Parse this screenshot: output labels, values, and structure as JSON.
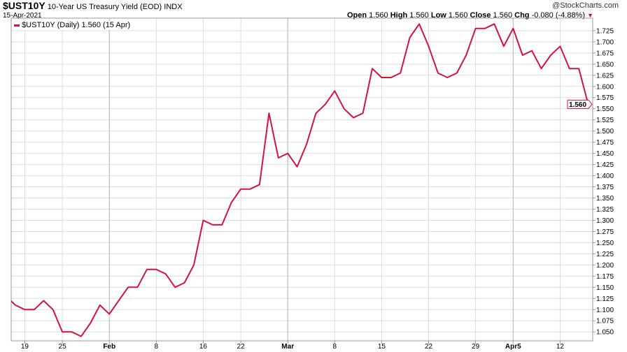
{
  "header": {
    "symbol": "$UST10Y",
    "name": "10-Year US Treasury Yield (EOD)",
    "exchange": "INDX",
    "date": "15-Apr-2021",
    "watermark": "@StockCharts.com",
    "open_label": "Open",
    "open": "1.560",
    "high_label": "High",
    "high": "1.560",
    "low_label": "Low",
    "low": "1.560",
    "close_label": "Close",
    "close": "1.560",
    "chg_label": "Chg",
    "chg": "-0.080 (-4.88%)",
    "chg_icon": "triangle-down-icon"
  },
  "legend": {
    "text": "$UST10Y (Daily) 1.560 (15 Apr)"
  },
  "colors": {
    "line": "#d6123f",
    "grid": "#dddddd",
    "major_grid": "#b0b0b0"
  },
  "chart_data": {
    "type": "line",
    "title": "$UST10Y 10-Year US Treasury Yield (EOD) INDX",
    "ylim": [
      1.03,
      1.753
    ],
    "yaxis_side": "right",
    "grid": true,
    "legend_placement": "top-left",
    "last_value_label": "1.560",
    "yticks": [
      "1.050",
      "1.075",
      "1.100",
      "1.125",
      "1.150",
      "1.175",
      "1.200",
      "1.225",
      "1.250",
      "1.275",
      "1.300",
      "1.325",
      "1.350",
      "1.375",
      "1.400",
      "1.425",
      "1.450",
      "1.475",
      "1.500",
      "1.525",
      "1.550",
      "1.575",
      "1.600",
      "1.625",
      "1.650",
      "1.675",
      "1.700",
      "1.725"
    ],
    "xticks": [
      {
        "date": "2021-01-19",
        "label": "19",
        "major": false
      },
      {
        "date": "2021-01-25",
        "label": "25",
        "major": false
      },
      {
        "date": "2021-02-01",
        "label": "Feb",
        "major": true
      },
      {
        "date": "2021-02-08",
        "label": "8",
        "major": false
      },
      {
        "date": "2021-02-16",
        "label": "16",
        "major": false
      },
      {
        "date": "2021-02-22",
        "label": "22",
        "major": false
      },
      {
        "date": "2021-03-01",
        "label": "Mar",
        "major": true
      },
      {
        "date": "2021-03-08",
        "label": "8",
        "major": false
      },
      {
        "date": "2021-03-15",
        "label": "15",
        "major": false
      },
      {
        "date": "2021-03-22",
        "label": "22",
        "major": false
      },
      {
        "date": "2021-03-29",
        "label": "29",
        "major": false
      },
      {
        "date": "2021-04-05",
        "label": "Apr5",
        "major": true
      },
      {
        "date": "2021-04-12",
        "label": "12",
        "major": false
      }
    ],
    "series": [
      {
        "x": [
          "2021-01-14",
          "2021-01-15",
          "2021-01-19",
          "2021-01-20",
          "2021-01-21",
          "2021-01-22",
          "2021-01-25",
          "2021-01-26",
          "2021-01-27",
          "2021-01-28",
          "2021-01-29",
          "2021-02-01",
          "2021-02-02",
          "2021-02-03",
          "2021-02-04",
          "2021-02-05",
          "2021-02-08",
          "2021-02-09",
          "2021-02-10",
          "2021-02-11",
          "2021-02-12",
          "2021-02-16",
          "2021-02-17",
          "2021-02-18",
          "2021-02-19",
          "2021-02-22",
          "2021-02-23",
          "2021-02-24",
          "2021-02-25",
          "2021-02-26",
          "2021-03-01",
          "2021-03-02",
          "2021-03-03",
          "2021-03-04",
          "2021-03-05",
          "2021-03-08",
          "2021-03-09",
          "2021-03-10",
          "2021-03-11",
          "2021-03-12",
          "2021-03-15",
          "2021-03-16",
          "2021-03-17",
          "2021-03-18",
          "2021-03-19",
          "2021-03-22",
          "2021-03-23",
          "2021-03-24",
          "2021-03-25",
          "2021-03-26",
          "2021-03-29",
          "2021-03-30",
          "2021-03-31",
          "2021-04-01",
          "2021-04-05",
          "2021-04-06",
          "2021-04-07",
          "2021-04-08",
          "2021-04-09",
          "2021-04-12",
          "2021-04-13",
          "2021-04-14",
          "2021-04-15"
        ],
        "y": [
          1.13,
          1.11,
          1.1,
          1.1,
          1.12,
          1.1,
          1.05,
          1.05,
          1.04,
          1.07,
          1.11,
          1.09,
          1.12,
          1.15,
          1.15,
          1.19,
          1.19,
          1.18,
          1.15,
          1.16,
          1.2,
          1.3,
          1.29,
          1.29,
          1.34,
          1.37,
          1.37,
          1.38,
          1.54,
          1.44,
          1.45,
          1.42,
          1.47,
          1.54,
          1.56,
          1.59,
          1.55,
          1.53,
          1.54,
          1.64,
          1.62,
          1.62,
          1.63,
          1.71,
          1.74,
          1.69,
          1.63,
          1.62,
          1.63,
          1.67,
          1.73,
          1.73,
          1.74,
          1.69,
          1.73,
          1.67,
          1.68,
          1.64,
          1.67,
          1.69,
          1.64,
          1.64,
          1.56
        ]
      }
    ]
  }
}
